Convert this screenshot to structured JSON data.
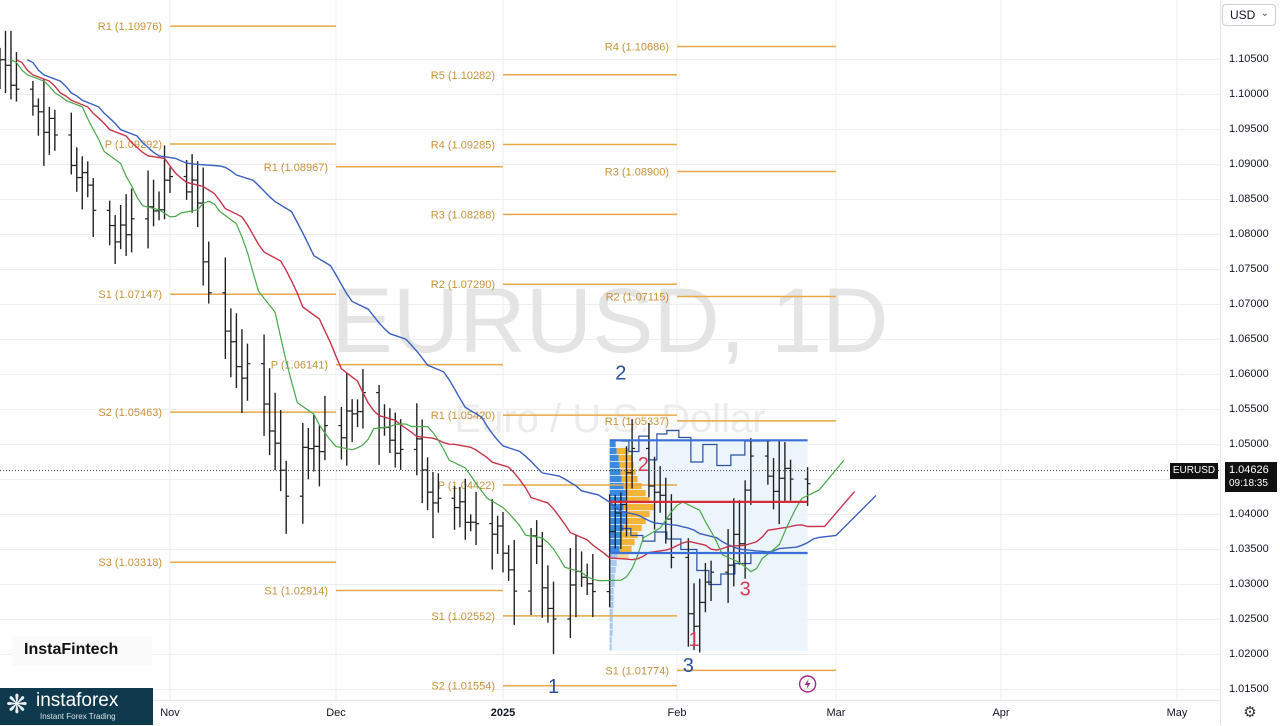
{
  "chart_data": {
    "type": "candlestick",
    "title": "EURUSD, 1D",
    "subtitle": "Euro / U.S. Dollar",
    "currency": "USD",
    "ylim": [
      1.0135,
      1.1135
    ],
    "y_ticks": [
      "1.10500",
      "1.10000",
      "1.09500",
      "1.09000",
      "1.08500",
      "1.08000",
      "1.07500",
      "1.07000",
      "1.06500",
      "1.06000",
      "1.05500",
      "1.05000",
      "1.04500",
      "1.04000",
      "1.03500",
      "1.03000",
      "1.02500",
      "1.02000",
      "1.01500"
    ],
    "x_ticks": [
      "Nov",
      "Dec",
      "2025",
      "Feb",
      "Mar",
      "Apr",
      "May"
    ],
    "last_price": "1.04626",
    "countdown": "09:18:35",
    "symbol_tag": "EURUSD",
    "pivot_levels": [
      {
        "label": "R1 (1.10976)",
        "value": 1.10976,
        "period": 0
      },
      {
        "label": "P (1.09292)",
        "value": 1.09292,
        "period": 0
      },
      {
        "label": "S1 (1.07147)",
        "value": 1.07147,
        "period": 0
      },
      {
        "label": "S2 (1.05463)",
        "value": 1.05463,
        "period": 0
      },
      {
        "label": "S3 (1.03318)",
        "value": 1.03318,
        "period": 0
      },
      {
        "label": "R1 (1.08967)",
        "value": 1.08967,
        "period": 1
      },
      {
        "label": "P (1.06141)",
        "value": 1.06141,
        "period": 1
      },
      {
        "label": "S1 (1.02914)",
        "value": 1.02914,
        "period": 1
      },
      {
        "label": "R5 (1.10282)",
        "value": 1.10282,
        "period": 2
      },
      {
        "label": "R4 (1.09285)",
        "value": 1.09285,
        "period": 2
      },
      {
        "label": "R3 (1.08288)",
        "value": 1.08288,
        "period": 2
      },
      {
        "label": "R2 (1.07290)",
        "value": 1.0729,
        "period": 2
      },
      {
        "label": "R1 (1.05420)",
        "value": 1.0542,
        "period": 2
      },
      {
        "label": "P (1.04422)",
        "value": 1.04422,
        "period": 2
      },
      {
        "label": "S1 (1.02552)",
        "value": 1.02552,
        "period": 2
      },
      {
        "label": "S2 (1.01554)",
        "value": 1.01554,
        "period": 2
      },
      {
        "label": "R4 (1.10686)",
        "value": 1.10686,
        "period": 3
      },
      {
        "label": "R3 (1.08900)",
        "value": 1.089,
        "period": 3
      },
      {
        "label": "R2 (1.07115)",
        "value": 1.07115,
        "period": 3
      },
      {
        "label": "R1 (1.05337)",
        "value": 1.05337,
        "period": 3
      },
      {
        "label": "S1 (1.01774)",
        "value": 1.01774,
        "period": 3
      }
    ],
    "annotations": [
      {
        "text": "2",
        "color": "#2a4fa0",
        "price": 1.0593,
        "date_index": 0
      },
      {
        "text": "2",
        "color": "#d63a52",
        "price": 1.0462,
        "date_index": 1
      },
      {
        "text": "3",
        "color": "#d63a52",
        "price": 1.0284,
        "date_index": 2
      },
      {
        "text": "1",
        "color": "#d63a52",
        "price": 1.0212,
        "date_index": 3
      },
      {
        "text": "3",
        "color": "#2a4fa0",
        "price": 1.0175,
        "date_index": 4
      },
      {
        "text": "1",
        "color": "#2a4fa0",
        "price": 1.0145,
        "date_index": 5
      }
    ],
    "annotation_dates": [
      "2025-01-22",
      "2025-01-26",
      "2025-02-13",
      "2025-02-04",
      "2025-02-03",
      "2025-01-10"
    ],
    "horizontal_lines": [
      {
        "name": "value-area-high",
        "price": 1.0506,
        "color": "#3a6fd8"
      },
      {
        "name": "point-of-control",
        "price": 1.0418,
        "color": "#d42a3a"
      },
      {
        "name": "value-area-low",
        "price": 1.0345,
        "color": "#3a6fd8"
      }
    ],
    "hline_start": "2025-01-20",
    "hline_end": "2025-02-24",
    "colors": {
      "pivot": "#e6a84a",
      "pivot_text": "#c8923a",
      "ma_blue": "#3a5fc0",
      "ma_red": "#c8344a",
      "ma_green": "#4aa84a"
    },
    "watermark_symbol": "EURUSD, 1D",
    "watermark_name": "Euro / U.S. Dollar",
    "logo_small": "InstaFintech",
    "logo_name": "instaforex",
    "logo_tagline": "Instant Forex Trading"
  }
}
